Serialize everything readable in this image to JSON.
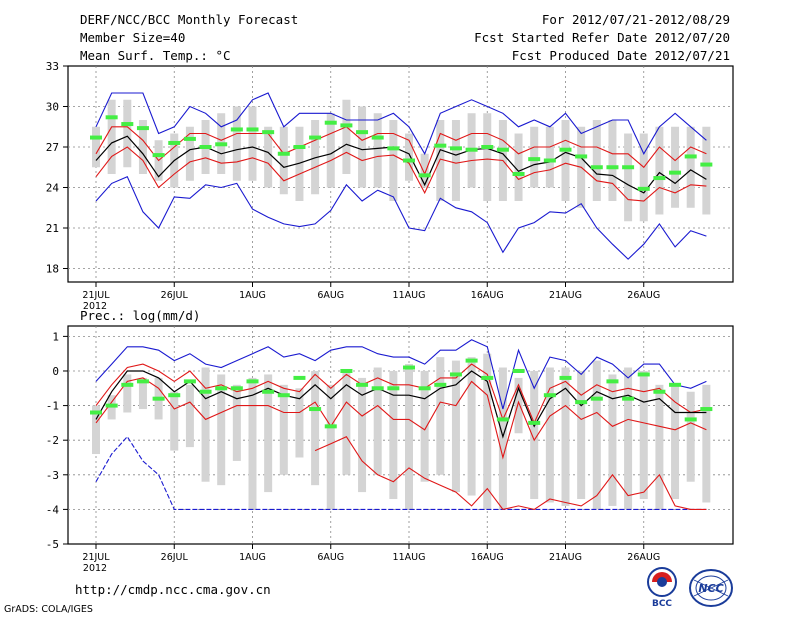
{
  "header": {
    "title": "DERF/NCC/BCC Monthly Forecast",
    "member_size": "Member Size=40",
    "variable": "Mean Surf. Temp.: °C",
    "period": "For 2012/07/21-2012/08/29",
    "refer_date": "Fcst Started Refer Date 2012/07/20",
    "produced_date": "Fcst Produced Date 2012/07/21"
  },
  "footer": {
    "url": "http://cmdp.ncc.cma.gov.cn",
    "credit": "GrADS: COLA/IGES",
    "logo_bcc_text": "BCC",
    "logo_ncc_text": "NCC"
  },
  "colors": {
    "box": "#d4d4d4",
    "mean": "#000000",
    "spread": "#e01818",
    "envelope": "#1a1ad0",
    "obs": "#44ee44"
  },
  "chart_data": [
    {
      "type": "line",
      "title": "Mean Surf. Temp.: °C",
      "xlabel": "",
      "ylabel": "°C",
      "ylim": [
        17,
        33
      ],
      "yticks": [
        18,
        21,
        24,
        27,
        30,
        33
      ],
      "xtick_days": [
        1,
        6,
        11,
        16,
        21,
        26,
        31,
        36
      ],
      "xtick_labels": [
        "21JUL",
        "26JUL",
        "1AUG",
        "6AUG",
        "11AUG",
        "16AUG",
        "21AUG",
        "26AUG"
      ],
      "xtick_year": "2012",
      "grid": true,
      "days": [
        1,
        2,
        3,
        4,
        5,
        6,
        7,
        8,
        9,
        10,
        11,
        12,
        13,
        14,
        15,
        16,
        17,
        18,
        19,
        20,
        21,
        22,
        23,
        24,
        25,
        26,
        27,
        28,
        29,
        30,
        31,
        32,
        33,
        34,
        35,
        36,
        37,
        38,
        39,
        40
      ],
      "box_low": [
        25.5,
        25.0,
        25.5,
        25.0,
        24.5,
        24.0,
        24.5,
        25.0,
        25.0,
        24.5,
        24.5,
        24.0,
        23.5,
        23.0,
        23.5,
        24.0,
        25.0,
        24.0,
        24.0,
        23.0,
        24.5,
        24.0,
        23.0,
        23.0,
        24.0,
        23.0,
        23.0,
        23.0,
        24.0,
        24.0,
        23.0,
        22.5,
        23.0,
        23.0,
        21.5,
        21.5,
        22.0,
        22.5,
        22.5,
        22.0
      ],
      "box_high": [
        28.5,
        30.5,
        30.5,
        29.0,
        27.5,
        28.0,
        28.5,
        29.0,
        29.5,
        30.0,
        30.0,
        28.5,
        28.5,
        28.5,
        29.0,
        29.5,
        30.5,
        30.0,
        29.5,
        29.0,
        28.0,
        26.5,
        29.0,
        29.0,
        29.5,
        29.5,
        29.0,
        28.0,
        28.5,
        28.5,
        29.0,
        28.5,
        29.0,
        29.0,
        28.0,
        28.0,
        28.5,
        28.5,
        28.5,
        28.5
      ],
      "series": [
        {
          "name": "max",
          "values": [
            28.5,
            31.0,
            31.0,
            31.0,
            28.0,
            28.5,
            30.0,
            29.5,
            28.5,
            29.0,
            30.5,
            31.0,
            28.5,
            29.5,
            29.5,
            29.5,
            29.0,
            29.0,
            29.0,
            29.5,
            28.5,
            26.5,
            29.5,
            30.0,
            30.5,
            30.0,
            29.5,
            28.5,
            29.0,
            28.5,
            29.5,
            28.0,
            28.5,
            29.0,
            29.0,
            26.5,
            28.5,
            29.5,
            28.5,
            27.5
          ]
        },
        {
          "name": "upper",
          "values": [
            26.5,
            28.5,
            28.5,
            27.5,
            26.0,
            27.0,
            28.0,
            28.0,
            27.5,
            28.0,
            28.0,
            28.0,
            26.5,
            27.0,
            27.5,
            28.0,
            28.5,
            27.5,
            28.0,
            28.0,
            27.5,
            25.0,
            28.0,
            27.5,
            28.0,
            28.0,
            27.5,
            26.5,
            27.0,
            27.0,
            27.5,
            27.0,
            27.0,
            26.5,
            26.5,
            25.5,
            27.0,
            26.0,
            27.0,
            26.5
          ]
        },
        {
          "name": "mean",
          "values": [
            26.0,
            27.3,
            27.8,
            26.5,
            24.8,
            26.0,
            26.8,
            27.0,
            26.5,
            26.8,
            27.0,
            26.6,
            25.5,
            25.8,
            26.2,
            26.5,
            27.2,
            26.8,
            26.9,
            27.0,
            26.5,
            24.2,
            26.8,
            26.4,
            26.8,
            26.9,
            26.5,
            25.2,
            25.7,
            25.9,
            26.6,
            26.2,
            25.0,
            24.9,
            24.2,
            23.6,
            25.1,
            24.3,
            25.3,
            24.6
          ]
        },
        {
          "name": "lower",
          "values": [
            24.8,
            26.3,
            27.0,
            26.0,
            24.0,
            25.0,
            25.9,
            26.2,
            25.8,
            25.9,
            26.2,
            25.8,
            24.5,
            25.0,
            25.5,
            26.0,
            26.6,
            26.0,
            26.3,
            26.4,
            25.8,
            23.6,
            26.1,
            25.8,
            26.0,
            26.1,
            26.0,
            24.6,
            25.1,
            25.3,
            25.8,
            25.5,
            24.5,
            24.3,
            23.1,
            23.0,
            24.0,
            23.6,
            24.2,
            24.1
          ]
        },
        {
          "name": "min",
          "values": [
            23.0,
            24.3,
            24.8,
            22.2,
            21.0,
            23.3,
            23.2,
            24.2,
            24.0,
            24.3,
            22.4,
            21.8,
            21.3,
            21.1,
            21.3,
            22.3,
            24.2,
            23.0,
            23.8,
            23.3,
            21.0,
            20.8,
            23.2,
            22.5,
            22.2,
            21.4,
            19.2,
            21.0,
            21.4,
            22.2,
            22.1,
            22.8,
            21.0,
            19.8,
            18.7,
            19.8,
            21.3,
            19.6,
            20.8,
            20.4
          ]
        },
        {
          "name": "obs",
          "values": [
            27.7,
            29.2,
            28.7,
            28.4,
            26.4,
            27.3,
            27.6,
            27.0,
            27.2,
            28.3,
            28.3,
            28.1,
            26.5,
            27.0,
            27.7,
            28.8,
            28.6,
            28.1,
            27.7,
            26.9,
            26.0,
            24.9,
            27.1,
            26.9,
            26.8,
            27.0,
            26.8,
            25.0,
            26.1,
            26.0,
            26.8,
            26.3,
            25.5,
            25.5,
            25.5,
            23.9,
            24.7,
            25.1,
            26.3,
            25.7
          ]
        }
      ]
    },
    {
      "type": "line",
      "title": "Prec.: log(mm/d)",
      "xlabel": "",
      "ylabel": "log(mm/d)",
      "ylim": [
        -5,
        1.3
      ],
      "yticks": [
        -5,
        -4,
        -3,
        -2,
        -1,
        0,
        1
      ],
      "xtick_days": [
        1,
        6,
        11,
        16,
        21,
        26,
        31,
        36
      ],
      "xtick_labels": [
        "21JUL",
        "26JUL",
        "1AUG",
        "6AUG",
        "11AUG",
        "16AUG",
        "21AUG",
        "26AUG"
      ],
      "xtick_year": "2012",
      "grid": true,
      "days": [
        1,
        2,
        3,
        4,
        5,
        6,
        7,
        8,
        9,
        10,
        11,
        12,
        13,
        14,
        15,
        16,
        17,
        18,
        19,
        20,
        21,
        22,
        23,
        24,
        25,
        26,
        27,
        28,
        29,
        30,
        31,
        32,
        33,
        34,
        35,
        36,
        37,
        38,
        39,
        40
      ],
      "box_low": [
        -2.4,
        -1.4,
        -1.2,
        -1.1,
        -1.4,
        -2.3,
        -2.2,
        -3.2,
        -3.3,
        -2.6,
        -4.0,
        -3.5,
        -3.0,
        -2.5,
        -3.3,
        -4.0,
        -3.0,
        -3.5,
        -3.0,
        -3.7,
        -4.0,
        -3.2,
        -3.0,
        -3.5,
        -3.6,
        -4.0,
        -4.0,
        -1.8,
        -3.7,
        -3.8,
        -3.9,
        -3.7,
        -4.0,
        -3.9,
        -4.0,
        -3.7,
        -4.0,
        -3.7,
        -3.2,
        -3.8
      ],
      "box_high": [
        -1.0,
        -0.7,
        -0.1,
        -0.2,
        -0.2,
        -0.6,
        -0.4,
        0.1,
        -0.1,
        -0.4,
        -0.2,
        -0.1,
        -0.4,
        -0.5,
        0.0,
        -0.4,
        0.0,
        -0.2,
        0.1,
        0.0,
        0.2,
        0.0,
        0.4,
        0.3,
        0.4,
        0.5,
        0.1,
        -0.2,
        0.0,
        0.1,
        0.1,
        0.0,
        0.3,
        -0.1,
        0.1,
        0.0,
        -0.4,
        -0.4,
        -0.6,
        -0.4
      ],
      "series": [
        {
          "name": "max",
          "values": [
            -0.3,
            0.2,
            0.7,
            0.7,
            0.6,
            0.3,
            0.5,
            0.2,
            0.1,
            0.3,
            0.5,
            0.7,
            0.4,
            0.5,
            0.3,
            0.6,
            0.7,
            0.7,
            0.5,
            0.4,
            0.4,
            0.2,
            0.6,
            0.6,
            0.9,
            0.7,
            -1.1,
            0.6,
            -0.5,
            0.4,
            0.3,
            -0.1,
            0.4,
            0.2,
            -0.2,
            0.2,
            0.2,
            -0.4,
            -0.5,
            -0.3
          ]
        },
        {
          "name": "upper",
          "values": [
            -1.0,
            -0.4,
            0.1,
            0.2,
            0.0,
            -0.3,
            0.0,
            -0.5,
            -0.4,
            -0.6,
            -0.5,
            -0.3,
            -0.5,
            -0.6,
            -0.1,
            -0.5,
            -0.1,
            -0.4,
            -0.2,
            -0.4,
            -0.4,
            -0.5,
            -0.2,
            -0.2,
            0.2,
            -0.1,
            -1.4,
            -0.4,
            -1.5,
            -0.5,
            -0.3,
            -0.7,
            -0.4,
            -0.6,
            -0.5,
            -0.6,
            -0.5,
            -0.9,
            -1.2,
            -1.1
          ]
        },
        {
          "name": "mean",
          "values": [
            -1.4,
            -0.6,
            0.0,
            0.0,
            -0.2,
            -0.6,
            -0.3,
            -0.8,
            -0.6,
            -0.8,
            -0.7,
            -0.5,
            -0.7,
            -0.8,
            -0.4,
            -0.8,
            -0.4,
            -0.7,
            -0.5,
            -0.7,
            -0.7,
            -0.8,
            -0.5,
            -0.4,
            0.0,
            -0.3,
            -1.9,
            -0.5,
            -1.6,
            -0.8,
            -0.5,
            -1.0,
            -0.6,
            -0.8,
            -0.7,
            -0.9,
            -0.8,
            -1.2,
            -1.2,
            -1.2
          ]
        },
        {
          "name": "lower",
          "values": [
            -1.5,
            -0.9,
            -0.3,
            -0.2,
            -0.5,
            -1.1,
            -0.9,
            -1.4,
            -1.2,
            -1.0,
            -1.0,
            -1.0,
            -1.2,
            -1.2,
            -0.9,
            -1.6,
            -0.9,
            -1.3,
            -1.0,
            -1.4,
            -1.4,
            -1.7,
            -0.9,
            -1.0,
            -0.3,
            -0.7,
            -2.5,
            -0.9,
            -2.0,
            -1.3,
            -1.0,
            -1.4,
            -1.2,
            -1.6,
            -1.4,
            -1.5,
            -1.6,
            -1.7,
            -1.5,
            -1.7
          ]
        },
        {
          "name": "min",
          "values": [
            -3.2,
            -2.4,
            -1.9,
            -2.6,
            -3.0,
            -4.0,
            -4.0,
            -4.0,
            -4.0,
            -4.0,
            -4.0,
            -4.0,
            -4.0,
            -4.0,
            -4.0,
            -4.0,
            -4.0,
            -4.0,
            -4.0,
            -4.0,
            -4.0,
            -4.0,
            -4.0,
            -4.0,
            -4.0,
            -4.0,
            -4.0,
            -4.0,
            -4.0,
            -4.0,
            -4.0,
            -4.0,
            -4.0,
            -4.0,
            -4.0,
            -4.0,
            -4.0,
            -4.0,
            -4.0,
            -4.0
          ]
        },
        {
          "name": "min_red",
          "values": [
            null,
            null,
            null,
            null,
            null,
            null,
            null,
            null,
            null,
            null,
            null,
            null,
            null,
            null,
            -2.3,
            -2.1,
            -1.9,
            -2.6,
            -3.0,
            -3.2,
            -2.8,
            -3.1,
            -3.3,
            -3.5,
            -3.9,
            -3.4,
            -4.0,
            -3.9,
            -4.0,
            -3.7,
            -3.8,
            -3.9,
            -3.6,
            -3.0,
            -3.6,
            -3.5,
            -3.0,
            -3.9,
            -4.0,
            -4.0
          ]
        },
        {
          "name": "obs",
          "values": [
            -1.2,
            -1.0,
            -0.4,
            -0.3,
            -0.8,
            -0.7,
            -0.3,
            -0.6,
            -0.5,
            -0.5,
            -0.3,
            -0.6,
            -0.7,
            -0.2,
            -1.1,
            -1.6,
            0.0,
            -0.4,
            -0.5,
            -0.5,
            0.1,
            -0.5,
            -0.4,
            -0.1,
            0.3,
            -0.2,
            -1.4,
            0.0,
            -1.5,
            -0.7,
            -0.2,
            -0.9,
            -0.8,
            -0.3,
            -0.8,
            -0.1,
            -0.6,
            -0.4,
            -1.4,
            -1.1
          ]
        }
      ]
    }
  ]
}
